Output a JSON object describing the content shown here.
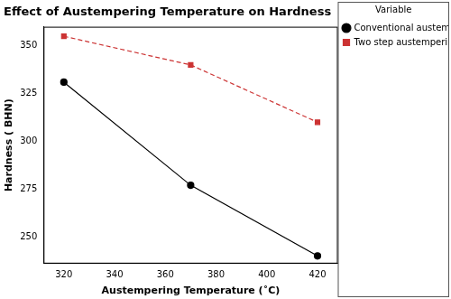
{
  "chart_data": {
    "type": "line",
    "title": "Effect of Austempering Temperature on Hardness",
    "x_label": "Austempering Temperature (˚C)",
    "y_label": "Hardness ( BHN)",
    "x": [
      320,
      370,
      420
    ],
    "series": [
      {
        "name": "Conventional austempering",
        "color": "#000000",
        "marker": "circle",
        "line_style": "solid",
        "values": [
          331,
          277,
          240
        ]
      },
      {
        "name": "Two step austempering",
        "color": "#cc3333",
        "marker": "square",
        "line_style": "dashed",
        "values": [
          355,
          340,
          310
        ]
      }
    ],
    "xlim": [
      312,
      428
    ],
    "xticks": [
      320,
      340,
      360,
      380,
      400,
      420
    ],
    "ylim": [
      236,
      360
    ],
    "yticks": [
      250,
      275,
      300,
      325,
      350
    ],
    "grid": false,
    "legend": "right",
    "legend_title": "Variable"
  }
}
